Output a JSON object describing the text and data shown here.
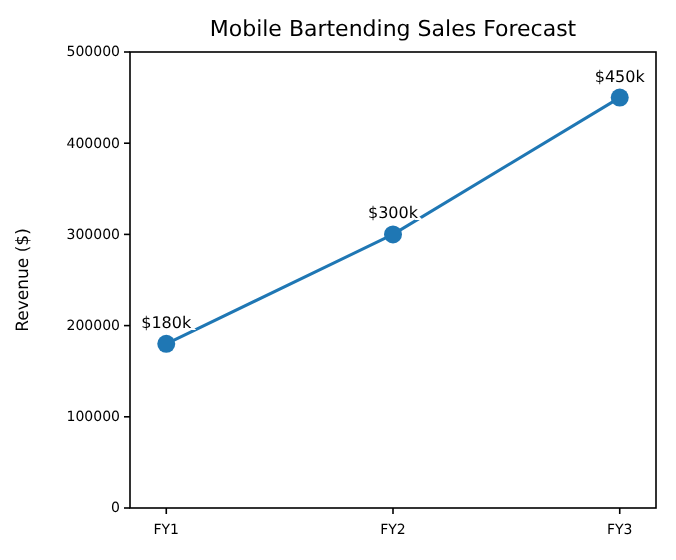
{
  "chart_data": {
    "type": "line",
    "title": "Mobile Bartending Sales Forecast",
    "ylabel": "Revenue ($)",
    "categories": [
      "FY1",
      "FY2",
      "FY3"
    ],
    "series": [
      {
        "color": "#1f77b4",
        "values": [
          180000,
          300000,
          450000
        ],
        "value_labels": [
          "$180k",
          "$300k",
          "$450k"
        ]
      }
    ],
    "ylim": [
      0,
      500000
    ],
    "yticks": [
      0,
      100000,
      200000,
      300000,
      400000,
      500000
    ],
    "marker": "circle",
    "grid": false
  }
}
